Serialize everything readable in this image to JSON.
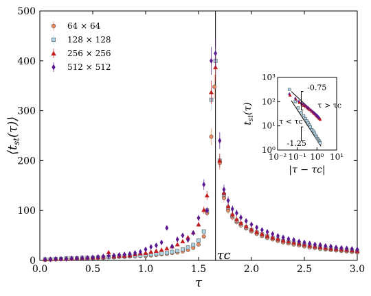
{
  "chart_data": {
    "type": "scatter",
    "xlabel": "τ",
    "ylabel": "⟨t_st(τ)⟩",
    "xlim": [
      0.0,
      3.0
    ],
    "ylim": [
      0,
      500
    ],
    "x_ticks": [
      "0.0",
      "0.5",
      "1.0",
      "1.5",
      "2.0",
      "2.5",
      "3.0"
    ],
    "y_ticks": [
      "0",
      "100",
      "200",
      "300",
      "400",
      "500"
    ],
    "critical_line": {
      "x": 1.66,
      "label": "τc"
    },
    "legend_position": "top-left",
    "series": [
      {
        "name": "64 × 64",
        "marker": "circle",
        "color": "#f08a5d",
        "points": [
          [
            0.05,
            1
          ],
          [
            0.1,
            2
          ],
          [
            0.15,
            2
          ],
          [
            0.2,
            3
          ],
          [
            0.25,
            3
          ],
          [
            0.3,
            3
          ],
          [
            0.35,
            4
          ],
          [
            0.4,
            4
          ],
          [
            0.45,
            4
          ],
          [
            0.5,
            5
          ],
          [
            0.55,
            5
          ],
          [
            0.6,
            5
          ],
          [
            0.65,
            6
          ],
          [
            0.7,
            6
          ],
          [
            0.75,
            7
          ],
          [
            0.8,
            7
          ],
          [
            0.85,
            8
          ],
          [
            0.9,
            8
          ],
          [
            0.95,
            9
          ],
          [
            1.0,
            9
          ],
          [
            1.05,
            10
          ],
          [
            1.1,
            11
          ],
          [
            1.15,
            12
          ],
          [
            1.2,
            13
          ],
          [
            1.25,
            15
          ],
          [
            1.3,
            16
          ],
          [
            1.35,
            18
          ],
          [
            1.4,
            21
          ],
          [
            1.45,
            25
          ],
          [
            1.5,
            32
          ],
          [
            1.55,
            48
          ],
          [
            1.58,
            95
          ],
          [
            1.62,
            248
          ],
          [
            1.65,
            348
          ],
          [
            1.7,
            195
          ],
          [
            1.74,
            125
          ],
          [
            1.78,
            100
          ],
          [
            1.82,
            86
          ],
          [
            1.86,
            77
          ],
          [
            1.9,
            70
          ],
          [
            1.95,
            64
          ],
          [
            2.0,
            58
          ],
          [
            2.05,
            53
          ],
          [
            2.1,
            49
          ],
          [
            2.15,
            45
          ],
          [
            2.2,
            42
          ],
          [
            2.25,
            39
          ],
          [
            2.3,
            36
          ],
          [
            2.35,
            34
          ],
          [
            2.4,
            32
          ],
          [
            2.45,
            30
          ],
          [
            2.5,
            28
          ],
          [
            2.55,
            26
          ],
          [
            2.6,
            25
          ],
          [
            2.65,
            23
          ],
          [
            2.7,
            22
          ],
          [
            2.75,
            21
          ],
          [
            2.8,
            20
          ],
          [
            2.85,
            19
          ],
          [
            2.9,
            18
          ],
          [
            2.95,
            17
          ],
          [
            3.0,
            16
          ]
        ]
      },
      {
        "name": "128 × 128",
        "marker": "square",
        "color": "#a9d4e6",
        "points": [
          [
            0.05,
            2
          ],
          [
            0.1,
            2
          ],
          [
            0.15,
            3
          ],
          [
            0.2,
            3
          ],
          [
            0.25,
            4
          ],
          [
            0.3,
            4
          ],
          [
            0.35,
            4
          ],
          [
            0.4,
            5
          ],
          [
            0.45,
            5
          ],
          [
            0.5,
            5
          ],
          [
            0.55,
            6
          ],
          [
            0.6,
            6
          ],
          [
            0.65,
            7
          ],
          [
            0.7,
            7
          ],
          [
            0.75,
            8
          ],
          [
            0.8,
            8
          ],
          [
            0.85,
            9
          ],
          [
            0.9,
            9
          ],
          [
            0.95,
            10
          ],
          [
            1.0,
            11
          ],
          [
            1.05,
            12
          ],
          [
            1.1,
            13
          ],
          [
            1.15,
            14
          ],
          [
            1.2,
            15
          ],
          [
            1.25,
            17
          ],
          [
            1.3,
            19
          ],
          [
            1.35,
            22
          ],
          [
            1.4,
            26
          ],
          [
            1.45,
            31
          ],
          [
            1.5,
            40
          ],
          [
            1.55,
            58
          ],
          [
            1.58,
            100
          ],
          [
            1.62,
            322
          ],
          [
            1.66,
            400
          ],
          [
            1.7,
            200
          ],
          [
            1.74,
            132
          ],
          [
            1.78,
            106
          ],
          [
            1.82,
            90
          ],
          [
            1.86,
            80
          ],
          [
            1.9,
            73
          ],
          [
            1.95,
            66
          ],
          [
            2.0,
            61
          ],
          [
            2.05,
            56
          ],
          [
            2.1,
            52
          ],
          [
            2.15,
            48
          ],
          [
            2.2,
            45
          ],
          [
            2.25,
            42
          ],
          [
            2.3,
            39
          ],
          [
            2.35,
            37
          ],
          [
            2.4,
            35
          ],
          [
            2.45,
            33
          ],
          [
            2.5,
            31
          ],
          [
            2.55,
            29
          ],
          [
            2.6,
            27
          ],
          [
            2.65,
            26
          ],
          [
            2.7,
            24
          ],
          [
            2.75,
            23
          ],
          [
            2.8,
            22
          ],
          [
            2.85,
            21
          ],
          [
            2.9,
            20
          ],
          [
            2.95,
            19
          ],
          [
            3.0,
            18
          ]
        ]
      },
      {
        "name": "256 × 256",
        "marker": "triangle",
        "color": "#c41e1e",
        "points": [
          [
            0.05,
            2
          ],
          [
            0.1,
            3
          ],
          [
            0.15,
            3
          ],
          [
            0.2,
            3
          ],
          [
            0.25,
            4
          ],
          [
            0.3,
            4
          ],
          [
            0.35,
            5
          ],
          [
            0.4,
            5
          ],
          [
            0.45,
            6
          ],
          [
            0.5,
            6
          ],
          [
            0.55,
            6
          ],
          [
            0.6,
            7
          ],
          [
            0.65,
            16
          ],
          [
            0.7,
            8
          ],
          [
            0.75,
            9
          ],
          [
            0.8,
            9
          ],
          [
            0.85,
            10
          ],
          [
            0.9,
            12
          ],
          [
            0.95,
            14
          ],
          [
            1.0,
            15
          ],
          [
            1.05,
            17
          ],
          [
            1.1,
            19
          ],
          [
            1.15,
            21
          ],
          [
            1.2,
            24
          ],
          [
            1.25,
            28
          ],
          [
            1.3,
            32
          ],
          [
            1.35,
            38
          ],
          [
            1.4,
            46
          ],
          [
            1.45,
            56
          ],
          [
            1.5,
            72
          ],
          [
            1.55,
            101
          ],
          [
            1.58,
            130
          ],
          [
            1.62,
            337
          ],
          [
            1.66,
            387
          ],
          [
            1.7,
            200
          ],
          [
            1.74,
            135
          ],
          [
            1.78,
            108
          ],
          [
            1.82,
            92
          ],
          [
            1.86,
            82
          ],
          [
            1.9,
            75
          ],
          [
            1.95,
            68
          ],
          [
            2.0,
            62
          ],
          [
            2.05,
            57
          ],
          [
            2.1,
            53
          ],
          [
            2.15,
            49
          ],
          [
            2.2,
            46
          ],
          [
            2.25,
            43
          ],
          [
            2.3,
            40
          ],
          [
            2.35,
            38
          ],
          [
            2.4,
            36
          ],
          [
            2.45,
            34
          ],
          [
            2.5,
            32
          ],
          [
            2.55,
            30
          ],
          [
            2.6,
            28
          ],
          [
            2.65,
            27
          ],
          [
            2.7,
            25
          ],
          [
            2.75,
            24
          ],
          [
            2.8,
            23
          ],
          [
            2.85,
            22
          ],
          [
            2.9,
            21
          ],
          [
            2.95,
            20
          ],
          [
            3.0,
            19
          ]
        ]
      },
      {
        "name": "512 × 512",
        "marker": "diamond",
        "color": "#5a168f",
        "points": [
          [
            0.05,
            2
          ],
          [
            0.1,
            2
          ],
          [
            0.15,
            3
          ],
          [
            0.2,
            3
          ],
          [
            0.25,
            3
          ],
          [
            0.3,
            4
          ],
          [
            0.35,
            4
          ],
          [
            0.4,
            5
          ],
          [
            0.45,
            5
          ],
          [
            0.5,
            6
          ],
          [
            0.55,
            7
          ],
          [
            0.6,
            8
          ],
          [
            0.65,
            9
          ],
          [
            0.7,
            10
          ],
          [
            0.75,
            11
          ],
          [
            0.8,
            12
          ],
          [
            0.85,
            13
          ],
          [
            0.9,
            15
          ],
          [
            0.95,
            17
          ],
          [
            1.0,
            22
          ],
          [
            1.05,
            27
          ],
          [
            1.1,
            30
          ],
          [
            1.15,
            36
          ],
          [
            1.2,
            65
          ],
          [
            1.25,
            28
          ],
          [
            1.3,
            42
          ],
          [
            1.35,
            50
          ],
          [
            1.4,
            41
          ],
          [
            1.45,
            55
          ],
          [
            1.5,
            85
          ],
          [
            1.55,
            152
          ],
          [
            1.58,
            100
          ],
          [
            1.62,
            400
          ],
          [
            1.66,
            415
          ],
          [
            1.7,
            240
          ],
          [
            1.74,
            142
          ],
          [
            1.78,
            120
          ],
          [
            1.82,
            103
          ],
          [
            1.86,
            95
          ],
          [
            1.9,
            86
          ],
          [
            1.95,
            79
          ],
          [
            2.0,
            72
          ],
          [
            2.05,
            66
          ],
          [
            2.1,
            61
          ],
          [
            2.15,
            57
          ],
          [
            2.2,
            53
          ],
          [
            2.25,
            49
          ],
          [
            2.3,
            46
          ],
          [
            2.35,
            43
          ],
          [
            2.4,
            41
          ],
          [
            2.45,
            38
          ],
          [
            2.5,
            36
          ],
          [
            2.55,
            34
          ],
          [
            2.6,
            32
          ],
          [
            2.65,
            31
          ],
          [
            2.7,
            29
          ],
          [
            2.75,
            28
          ],
          [
            2.8,
            26
          ],
          [
            2.85,
            25
          ],
          [
            2.9,
            24
          ],
          [
            2.95,
            23
          ],
          [
            3.0,
            22
          ]
        ]
      }
    ],
    "inset": {
      "xlabel": "|τ − τc|",
      "ylabel": "t_st(τ)",
      "log_scale": true,
      "xlim": [
        0.01,
        10
      ],
      "ylim": [
        1,
        1000
      ],
      "x_ticks": [
        "10⁻²",
        "10⁻¹",
        "10⁰",
        "10¹"
      ],
      "y_ticks": [
        "10⁰",
        "10¹",
        "10²",
        "10³"
      ],
      "annotations": [
        "-0.75",
        "-1.25",
        "τ > τc",
        "τ < τc"
      ],
      "slopes": [
        -0.75,
        -1.25
      ],
      "points_above": [
        [
          0.04,
          200
        ],
        [
          0.08,
          130
        ],
        [
          0.12,
          100
        ],
        [
          0.16,
          85
        ],
        [
          0.2,
          75
        ],
        [
          0.25,
          68
        ],
        [
          0.3,
          60
        ],
        [
          0.35,
          55
        ],
        [
          0.4,
          50
        ],
        [
          0.5,
          43
        ],
        [
          0.6,
          38
        ],
        [
          0.7,
          34
        ],
        [
          0.8,
          31
        ],
        [
          0.9,
          28
        ],
        [
          1.0,
          26
        ],
        [
          1.1,
          24
        ],
        [
          1.2,
          22
        ],
        [
          1.34,
          20
        ]
      ],
      "points_below": [
        [
          0.04,
          320
        ],
        [
          0.08,
          100
        ],
        [
          0.11,
          55
        ],
        [
          0.16,
          35
        ],
        [
          0.21,
          26
        ],
        [
          0.26,
          20
        ],
        [
          0.31,
          16
        ],
        [
          0.36,
          13
        ],
        [
          0.41,
          11
        ],
        [
          0.46,
          9
        ],
        [
          0.56,
          7
        ],
        [
          0.66,
          6
        ],
        [
          0.76,
          5
        ],
        [
          0.86,
          4
        ],
        [
          0.96,
          3.5
        ],
        [
          1.06,
          3
        ],
        [
          1.16,
          2.7
        ],
        [
          1.26,
          2.4
        ],
        [
          1.36,
          2.2
        ],
        [
          1.46,
          2.0
        ]
      ]
    }
  }
}
